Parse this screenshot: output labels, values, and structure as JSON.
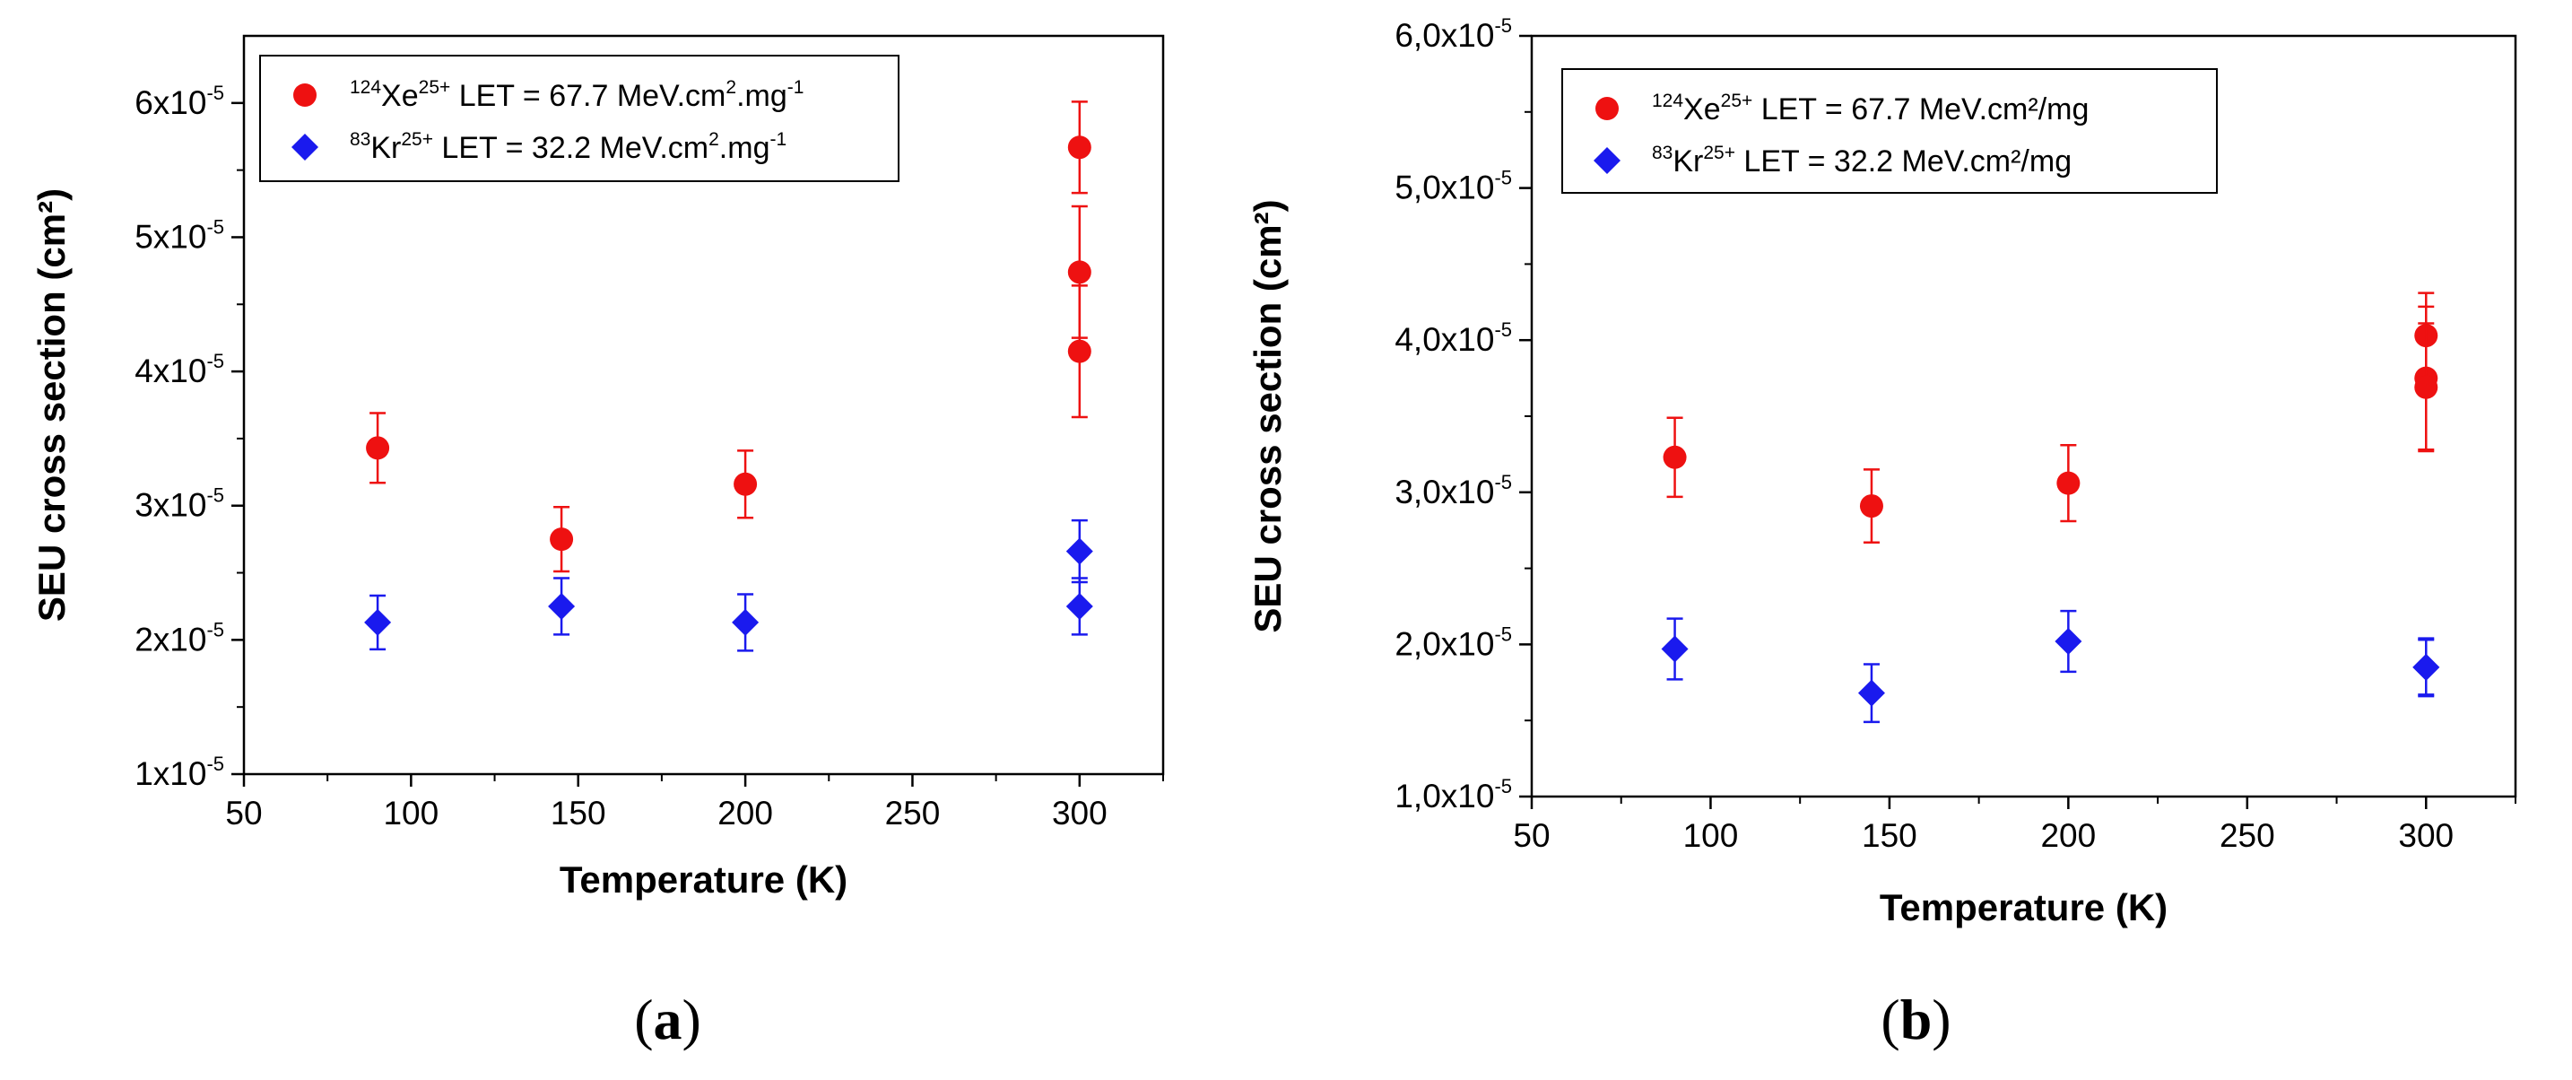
{
  "chart_data": [
    {
      "type": "scatter",
      "panel_id": "a",
      "caption_label": "a",
      "xlabel": "Temperature (K)",
      "ylabel": "SEU cross section (cm²)",
      "xlim": [
        50,
        325
      ],
      "ylim": [
        1e-05,
        6.5e-05
      ],
      "x_ticks": [
        50,
        100,
        150,
        200,
        250,
        300
      ],
      "x_tick_labels": [
        "50",
        "100",
        "150",
        "200",
        "250",
        "300"
      ],
      "x_minor_ticks": [
        75,
        125,
        175,
        225,
        275,
        325
      ],
      "y_ticks": [
        {
          "value": 1e-05,
          "mantissa": "1x10",
          "exp": "-5"
        },
        {
          "value": 2e-05,
          "mantissa": "2x10",
          "exp": "-5"
        },
        {
          "value": 3e-05,
          "mantissa": "3x10",
          "exp": "-5"
        },
        {
          "value": 4e-05,
          "mantissa": "4x10",
          "exp": "-5"
        },
        {
          "value": 5e-05,
          "mantissa": "5x10",
          "exp": "-5"
        },
        {
          "value": 6e-05,
          "mantissa": "6x10",
          "exp": "-5"
        }
      ],
      "y_minor_ticks": [
        1.5e-05,
        2.5e-05,
        3.5e-05,
        4.5e-05,
        5.5e-05
      ],
      "legend_position": "top-left",
      "series": [
        {
          "name": "124Xe25+ LET = 67.7 MeV.cm2.mg-1",
          "label_parts": {
            "mass": "124",
            "element": "Xe",
            "charge": "25+",
            "let": " LET = 67.7 MeV.cm",
            "let_sup": "2",
            "let_mid": ".mg",
            "let_sup2": "-1",
            "let_tail": ""
          },
          "marker": "circle",
          "color": "#ee1111",
          "points": [
            {
              "x": 90,
              "y": 3.43e-05,
              "err": 2.6e-06
            },
            {
              "x": 145,
              "y": 2.75e-05,
              "err": 2.4e-06
            },
            {
              "x": 200,
              "y": 3.16e-05,
              "err": 2.5e-06
            },
            {
              "x": 300,
              "y": 5.67e-05,
              "err": 3.4e-06
            },
            {
              "x": 300,
              "y": 4.74e-05,
              "err": 4.9e-06
            },
            {
              "x": 300,
              "y": 4.15e-05,
              "err": 4.9e-06
            }
          ]
        },
        {
          "name": "83Kr25+ LET = 32.2 MeV.cm2.mg-1",
          "label_parts": {
            "mass": "83",
            "element": "Kr",
            "charge": "25+",
            "let": " LET = 32.2 MeV.cm",
            "let_sup": "2",
            "let_mid": ".mg",
            "let_sup2": "-1",
            "let_tail": ""
          },
          "marker": "diamond",
          "color": "#1a1aee",
          "points": [
            {
              "x": 90,
              "y": 2.13e-05,
              "err": 2e-06
            },
            {
              "x": 145,
              "y": 2.25e-05,
              "err": 2.1e-06
            },
            {
              "x": 200,
              "y": 2.13e-05,
              "err": 2.1e-06
            },
            {
              "x": 300,
              "y": 2.66e-05,
              "err": 2.3e-06
            },
            {
              "x": 300,
              "y": 2.25e-05,
              "err": 2.1e-06
            }
          ]
        }
      ]
    },
    {
      "type": "scatter",
      "panel_id": "b",
      "caption_label": "b",
      "xlabel": "Temperature (K)",
      "ylabel": "SEU cross section (cm²)",
      "xlim": [
        50,
        325
      ],
      "ylim": [
        1e-05,
        6e-05
      ],
      "x_ticks": [
        50,
        100,
        150,
        200,
        250,
        300
      ],
      "x_tick_labels": [
        "50",
        "100",
        "150",
        "200",
        "250",
        "300"
      ],
      "x_minor_ticks": [
        75,
        125,
        175,
        225,
        275,
        325
      ],
      "y_ticks": [
        {
          "value": 1e-05,
          "mantissa": "1,0x10",
          "exp": "-5"
        },
        {
          "value": 2e-05,
          "mantissa": "2,0x10",
          "exp": "-5"
        },
        {
          "value": 3e-05,
          "mantissa": "3,0x10",
          "exp": "-5"
        },
        {
          "value": 4e-05,
          "mantissa": "4,0x10",
          "exp": "-5"
        },
        {
          "value": 5e-05,
          "mantissa": "5,0x10",
          "exp": "-5"
        },
        {
          "value": 6e-05,
          "mantissa": "6,0x10",
          "exp": "-5"
        }
      ],
      "y_minor_ticks": [
        1.5e-05,
        2.5e-05,
        3.5e-05,
        4.5e-05,
        5.5e-05
      ],
      "legend_position": "top-left",
      "series": [
        {
          "name": "124Xe25+ LET = 67.7 MeV.cm²/mg",
          "label_parts": {
            "mass": "124",
            "element": "Xe",
            "charge": "25+",
            "let": " LET = 67.7 MeV.cm²/mg",
            "let_sup": "",
            "let_mid": "",
            "let_sup2": "",
            "let_tail": ""
          },
          "marker": "circle",
          "color": "#ee1111",
          "points": [
            {
              "x": 90,
              "y": 3.23e-05,
              "err": 2.6e-06
            },
            {
              "x": 145,
              "y": 2.91e-05,
              "err": 2.4e-06
            },
            {
              "x": 200,
              "y": 3.06e-05,
              "err": 2.5e-06
            },
            {
              "x": 300,
              "y": 4.03e-05,
              "err": 2.8e-06
            },
            {
              "x": 300,
              "y": 3.75e-05,
              "err": 4.7e-06
            },
            {
              "x": 300,
              "y": 3.69e-05,
              "err": 4.2e-06
            }
          ]
        },
        {
          "name": "83Kr25+ LET = 32.2 MeV.cm²/mg",
          "label_parts": {
            "mass": "83",
            "element": "Kr",
            "charge": "25+",
            "let": " LET = 32.2 MeV.cm²/mg",
            "let_sup": "",
            "let_mid": "",
            "let_sup2": "",
            "let_tail": ""
          },
          "marker": "diamond",
          "color": "#1a1aee",
          "points": [
            {
              "x": 90,
              "y": 1.97e-05,
              "err": 2e-06
            },
            {
              "x": 145,
              "y": 1.68e-05,
              "err": 1.9e-06
            },
            {
              "x": 200,
              "y": 2.02e-05,
              "err": 2e-06
            },
            {
              "x": 300,
              "y": 1.85e-05,
              "err": 1.9e-06
            },
            {
              "x": 300,
              "y": 1.85e-05,
              "err": 1.8e-06
            }
          ]
        }
      ]
    }
  ]
}
